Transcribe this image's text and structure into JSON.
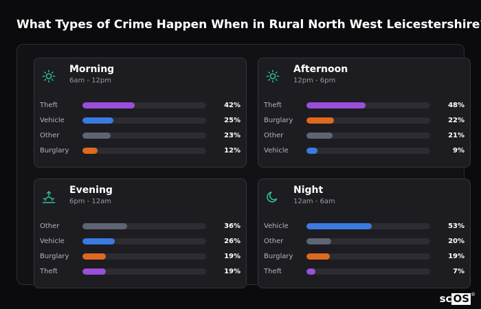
{
  "title": "What Types of Crime Happen When in Rural North West Leicestershire?",
  "logo": {
    "part1": "sc",
    "part2": "OS",
    "mark": "®"
  },
  "colors": {
    "Theft": "#9a4fd8",
    "Vehicle": "#3a7be0",
    "Other": "#5d6573",
    "Burglary": "#e0691f",
    "icon": "#2ec4a0"
  },
  "chart_data": [
    {
      "type": "bar",
      "title": "Morning",
      "subtitle": "6am - 12pm",
      "icon": "sun-icon",
      "categories": [
        "Theft",
        "Vehicle",
        "Other",
        "Burglary"
      ],
      "values": [
        42,
        25,
        23,
        12
      ],
      "labels": [
        "42%",
        "25%",
        "23%",
        "12%"
      ],
      "xlim": [
        0,
        100
      ]
    },
    {
      "type": "bar",
      "title": "Afternoon",
      "subtitle": "12pm - 6pm",
      "icon": "sun-icon",
      "categories": [
        "Theft",
        "Burglary",
        "Other",
        "Vehicle"
      ],
      "values": [
        48,
        22,
        21,
        9
      ],
      "labels": [
        "48%",
        "22%",
        "21%",
        "9%"
      ],
      "xlim": [
        0,
        100
      ]
    },
    {
      "type": "bar",
      "title": "Evening",
      "subtitle": "6pm - 12am",
      "icon": "sunset-icon",
      "categories": [
        "Other",
        "Vehicle",
        "Burglary",
        "Theft"
      ],
      "values": [
        36,
        26,
        19,
        19
      ],
      "labels": [
        "36%",
        "26%",
        "19%",
        "19%"
      ],
      "xlim": [
        0,
        100
      ]
    },
    {
      "type": "bar",
      "title": "Night",
      "subtitle": "12am - 6am",
      "icon": "moon-icon",
      "categories": [
        "Vehicle",
        "Other",
        "Burglary",
        "Theft"
      ],
      "values": [
        53,
        20,
        19,
        7
      ],
      "labels": [
        "53%",
        "20%",
        "19%",
        "7%"
      ],
      "xlim": [
        0,
        100
      ]
    }
  ]
}
